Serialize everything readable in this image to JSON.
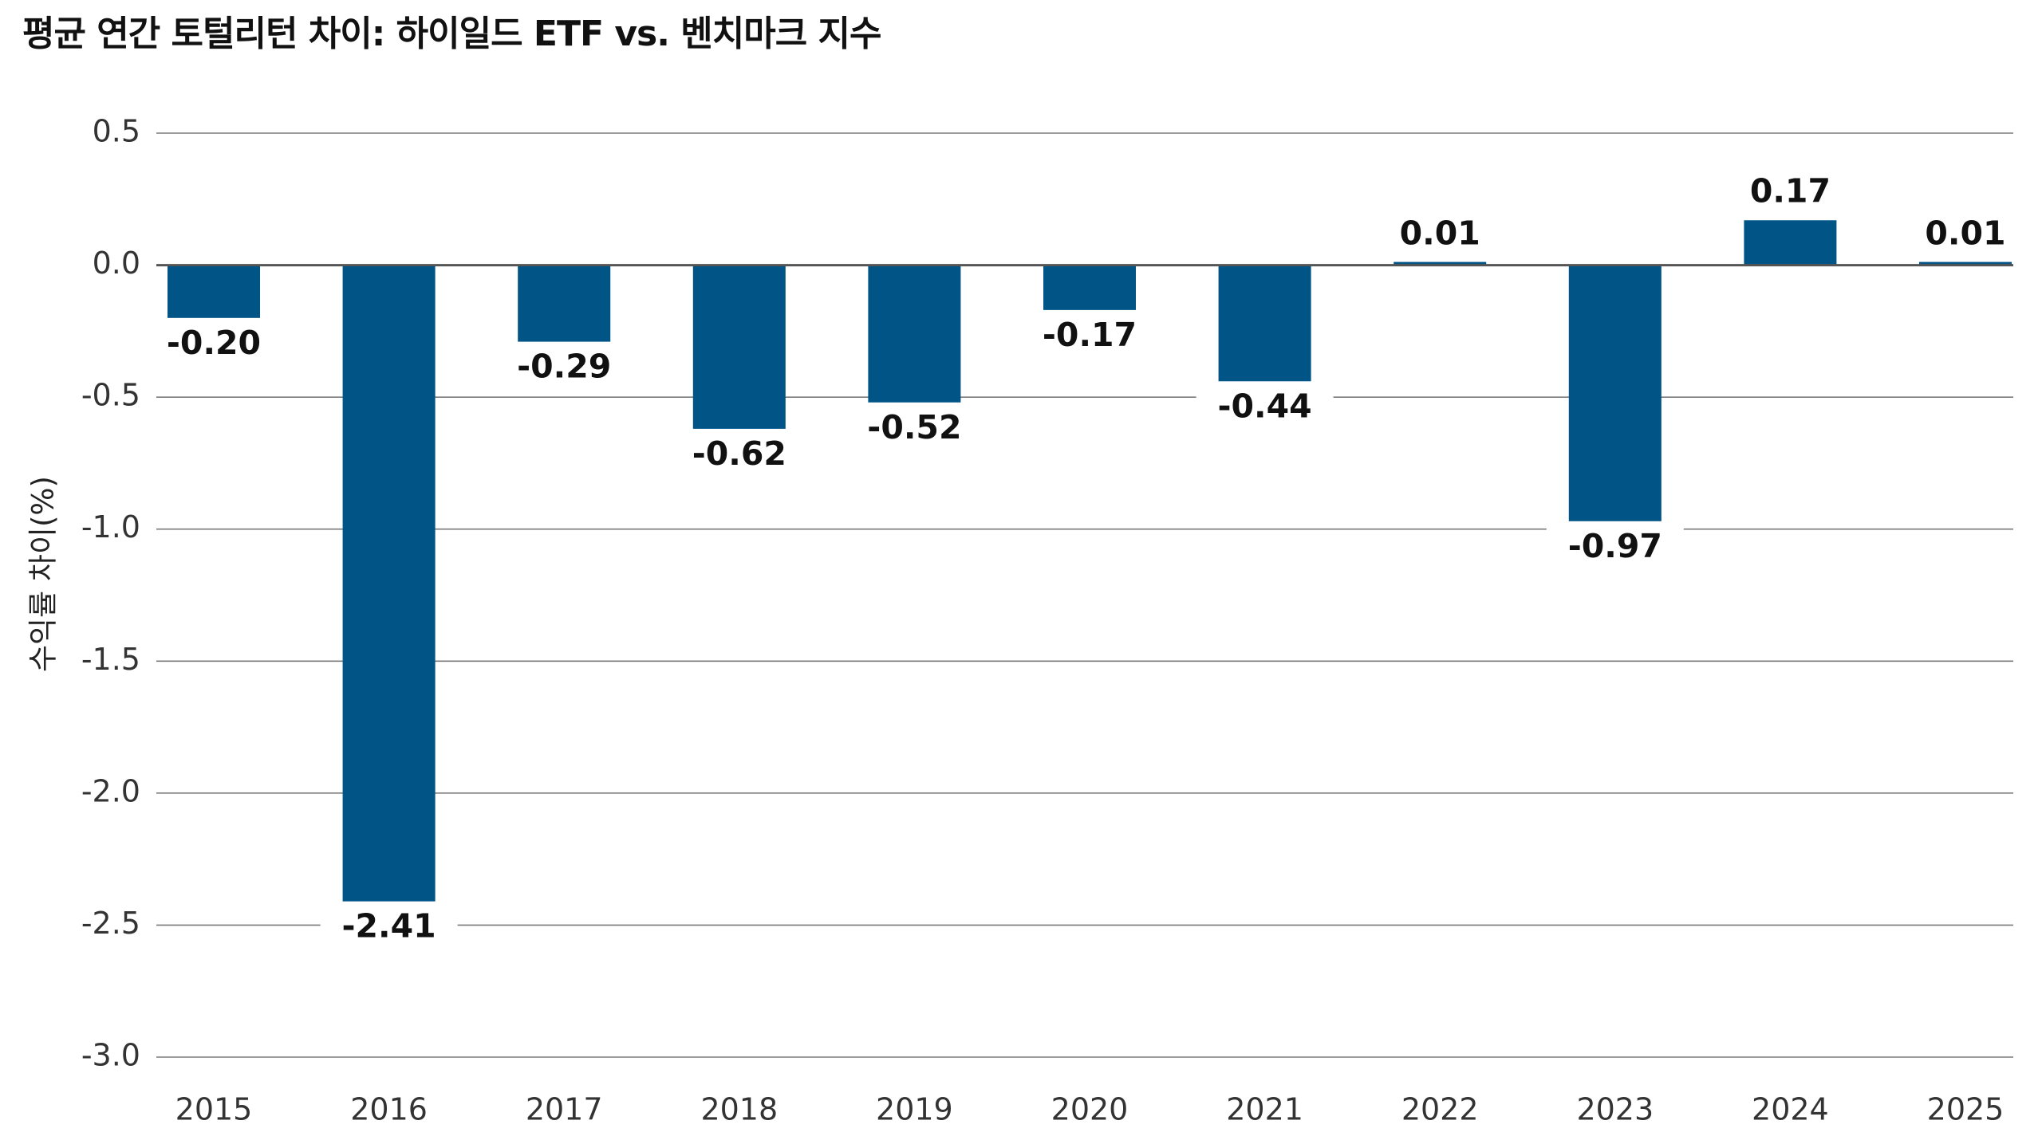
{
  "chart_data": {
    "type": "bar",
    "title": "평균 연간 토털리턴 차이: 하이일드 ETF vs. 벤치마크 지수",
    "xlabel": "",
    "ylabel": "수익률 차이(%)",
    "categories": [
      "2015",
      "2016",
      "2017",
      "2018",
      "2019",
      "2020",
      "2021",
      "2022",
      "2023",
      "2024",
      "2025"
    ],
    "values": [
      -0.2,
      -2.41,
      -0.29,
      -0.62,
      -0.52,
      -0.17,
      -0.44,
      0.01,
      -0.97,
      0.17,
      0.01
    ],
    "data_labels": [
      "-0.20",
      "-2.41",
      "-0.29",
      "-0.62",
      "-0.52",
      "-0.17",
      "-0.44",
      "0.01",
      "-0.97",
      "0.17",
      "0.01"
    ],
    "ylim": [
      -3.0,
      0.5
    ],
    "yticks": [
      0.5,
      0.0,
      -0.5,
      -1.0,
      -1.5,
      -2.0,
      -2.5,
      -3.0
    ],
    "ytick_labels": [
      "0.5",
      "0.0",
      "-0.5",
      "-1.0",
      "-1.5",
      "-2.0",
      "-2.5",
      "-3.0"
    ],
    "grid": true,
    "legend": "none",
    "colors": {
      "bar": "#005486",
      "grid": "#7a7a7a",
      "zero_line": "#555555"
    }
  }
}
